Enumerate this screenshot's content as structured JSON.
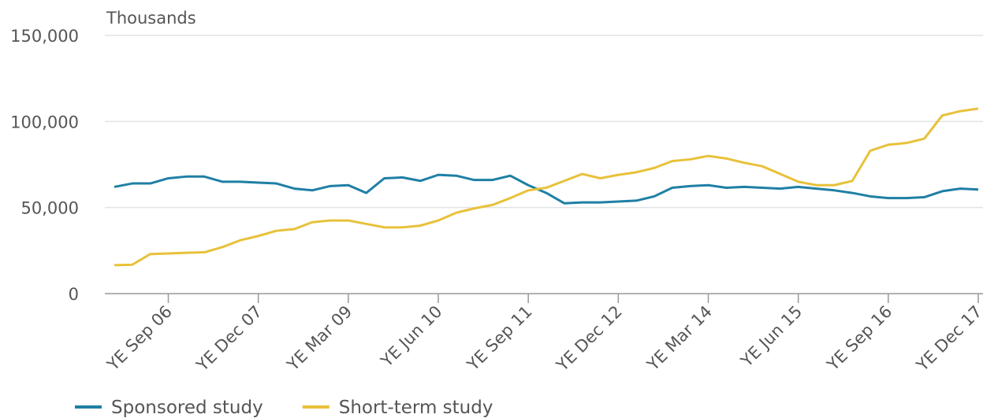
{
  "chart_data": {
    "type": "line",
    "y_label": "Thousands",
    "categories": [
      null,
      null,
      null,
      "YE Sep 06",
      null,
      null,
      null,
      null,
      "YE Dec 07",
      null,
      null,
      null,
      null,
      "YE Mar 09",
      null,
      null,
      null,
      null,
      "YE Jun 10",
      null,
      null,
      null,
      null,
      "YE Sep 11",
      null,
      null,
      null,
      null,
      "YE Dec 12",
      null,
      null,
      null,
      null,
      "YE Mar 14",
      null,
      null,
      null,
      null,
      "YE Jun 15",
      null,
      null,
      null,
      null,
      "YE Sep 16",
      null,
      null,
      null,
      null,
      "YE Dec 17"
    ],
    "series": [
      {
        "name": "Sponsored study",
        "color": "#1f7fa5",
        "values": [
          62000,
          64000,
          64000,
          67000,
          68000,
          68000,
          65000,
          65000,
          64500,
          64000,
          61000,
          60000,
          62500,
          63000,
          58500,
          67000,
          67500,
          65500,
          69000,
          68500,
          66000,
          66000,
          68500,
          63000,
          58500,
          52500,
          53000,
          53000,
          53500,
          54000,
          56500,
          61500,
          62500,
          63000,
          61500,
          62000,
          61500,
          61000,
          62000,
          61000,
          60000,
          58500,
          56500,
          55500,
          55500,
          56000,
          59500,
          61000,
          60500
        ]
      },
      {
        "name": "Short-term study",
        "color": "#e8c13a",
        "values": [
          16500,
          16800,
          23000,
          23300,
          23700,
          24000,
          27000,
          31000,
          33500,
          36500,
          37500,
          41500,
          42500,
          42500,
          40500,
          38500,
          38500,
          39500,
          42500,
          47000,
          49500,
          51500,
          55500,
          60000,
          61500,
          65500,
          69500,
          67000,
          69000,
          70500,
          73000,
          77000,
          78000,
          80000,
          78500,
          76000,
          74000,
          69500,
          65000,
          63000,
          63000,
          65500,
          83000,
          86500,
          87500,
          90000,
          103500,
          106000,
          107500
        ]
      }
    ],
    "ylim": [
      0,
      150000
    ],
    "yticks": [
      0,
      {
        "value": 50000,
        "label": "50,000"
      },
      {
        "value": 100000,
        "label": "100,000"
      },
      {
        "value": 150000,
        "label": "150,000"
      }
    ],
    "grid": true
  }
}
